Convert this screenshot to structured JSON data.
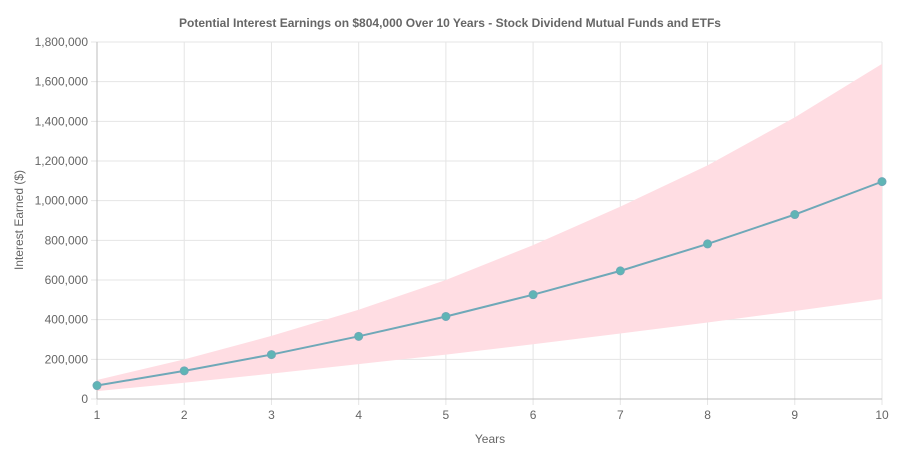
{
  "chart_data": {
    "type": "line",
    "title": "Potential Interest Earnings on $804,000 Over 10 Years - Stock Dividend Mutual Funds and ETFs",
    "xlabel": "Years",
    "ylabel": "Interest Earned ($)",
    "x": [
      1,
      2,
      3,
      4,
      5,
      6,
      7,
      8,
      9,
      10
    ],
    "ylim": [
      0,
      1800000
    ],
    "yticks": [
      0,
      200000,
      400000,
      600000,
      800000,
      1000000,
      1200000,
      1400000,
      1600000,
      1800000
    ],
    "ytick_labels": [
      "0",
      "200,000",
      "400,000",
      "600,000",
      "800,000",
      "1,000,000",
      "1,200,000",
      "1,400,000",
      "1,600,000",
      "1,800,000"
    ],
    "grid": true,
    "legend": "none",
    "series": [
      {
        "values": [
          68000,
          142000,
          224000,
          316000,
          416000,
          526000,
          646000,
          782000,
          930000,
          1096000
        ],
        "color": "#6fa8b8",
        "marker_color": "#5fb5b5"
      }
    ],
    "band": {
      "lower": [
        40000,
        82000,
        128000,
        176000,
        224000,
        276000,
        330000,
        386000,
        444000,
        504000
      ],
      "upper": [
        96000,
        200000,
        318000,
        450000,
        600000,
        776000,
        970000,
        1178000,
        1420000,
        1690000
      ],
      "color": "#ffdde3"
    }
  }
}
